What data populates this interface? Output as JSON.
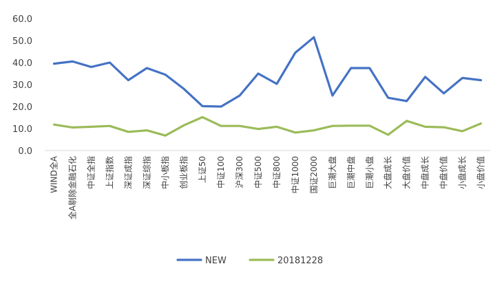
{
  "chart_data": {
    "type": "line",
    "categories": [
      "WIND全A",
      "全A剔除金融石化",
      "中证全指",
      "上证指数",
      "深证成指",
      "深证综指",
      "中小板指",
      "创业板指",
      "上证50",
      "中证100",
      "沪深300",
      "中证500",
      "中证800",
      "中证1000",
      "国证2000",
      "巨潮大盘",
      "巨潮中盘",
      "巨潮小盘",
      "大盘成长",
      "大盘价值",
      "中盘成长",
      "中盘价值",
      "小盘成长",
      "小盘价值"
    ],
    "series": [
      {
        "name": "NEW",
        "color": "#4472C4",
        "values": [
          39.5,
          40.5,
          38.0,
          40.0,
          32.0,
          37.5,
          34.5,
          28.0,
          20.2,
          20.0,
          25.0,
          35.0,
          30.3,
          44.5,
          51.5,
          25.0,
          37.5,
          37.5,
          24.0,
          22.5,
          33.5,
          26.0,
          33.0,
          32.0
        ]
      },
      {
        "name": "20181228",
        "color": "#9BBB59",
        "values": [
          11.8,
          10.5,
          10.8,
          11.2,
          8.5,
          9.2,
          6.8,
          11.5,
          15.2,
          11.2,
          11.2,
          9.8,
          10.8,
          8.2,
          9.2,
          11.2,
          11.3,
          11.3,
          7.2,
          13.5,
          10.8,
          10.6,
          8.8,
          12.3
        ]
      }
    ],
    "yticks": [
      "0.0",
      "10.0",
      "20.0",
      "30.0",
      "40.0",
      "50.0",
      "60.0"
    ],
    "ylim": [
      0,
      60
    ],
    "grid": false,
    "legend": "bottom"
  }
}
